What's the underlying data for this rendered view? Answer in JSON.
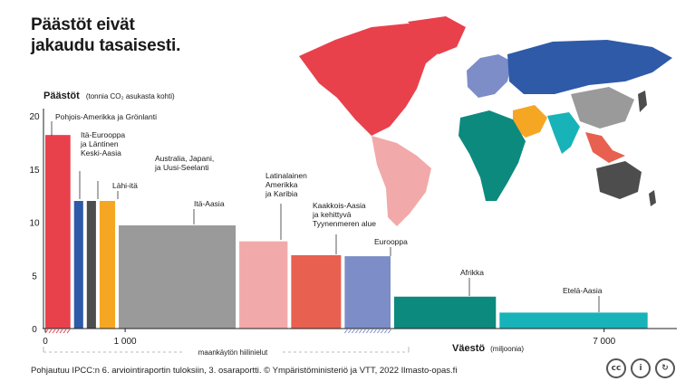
{
  "title_lines": [
    "Päästöt eivät",
    "jakaudu tasaisesti."
  ],
  "footer_text": "Pohjautuu IPCC:n 6. arviointiraportin tuloksiin, 3. osaraportti. © Ympäristöministeriö ja VTT, 2022 Ilmasto-opas.fi",
  "icons": [
    "cc-icon",
    "attribution-icon",
    "share-alike-icon"
  ],
  "icon_glyphs": [
    "cc",
    "i",
    "↻"
  ],
  "chart_data": {
    "type": "bar",
    "variable_width": true,
    "ylabel": "Päästöt",
    "ylabel_unit": "(tonnia CO₂ asukasta kohti)",
    "xlabel": "Väestö",
    "xlabel_unit": "(miljoonia)",
    "ylim": [
      0,
      20
    ],
    "yticks": [
      0,
      5,
      10,
      15,
      20
    ],
    "xlim": [
      0,
      7900
    ],
    "xtick_labels": [
      {
        "value": 0,
        "label": "0"
      },
      {
        "value": 1000,
        "label": "1 000"
      },
      {
        "value": 7000,
        "label": "7 000"
      }
    ],
    "land_use_note": "maankäytön hiilinielut",
    "series": [
      {
        "region": "Pohjois-Amerikka ja Grönlanti",
        "label_lines": [
          "Pohjois-Amerikka ja Grönlanti"
        ],
        "population": 360,
        "emissions": 18.2,
        "color": "#e8414c"
      },
      {
        "region": "Itä-Eurooppa ja Läntinen Keski-Aasia",
        "label_lines": [
          "Itä-Eurooppa",
          "ja Läntinen",
          "Keski-Aasia"
        ],
        "population": 160,
        "emissions": 12.0,
        "color": "#2e5aa8"
      },
      {
        "region": "Australia, Japani, ja Uusi-Seelanti",
        "label_lines": [
          "Australia, Japani,",
          "ja Uusi-Seelanti"
        ],
        "population": 160,
        "emissions": 12.0,
        "color": "#4d4d4d"
      },
      {
        "region": "Lähi-itä",
        "label_lines": [
          "Lähi-itä"
        ],
        "population": 240,
        "emissions": 12.0,
        "color": "#f5a623"
      },
      {
        "region": "Itä-Aasia",
        "label_lines": [
          "Itä-Aasia"
        ],
        "population": 1510,
        "emissions": 9.7,
        "color": "#9a9a9a"
      },
      {
        "region": "Latinalainen Amerikka ja Karibia",
        "label_lines": [
          "Latinalainen",
          "Amerikka",
          "ja Karibia"
        ],
        "population": 650,
        "emissions": 8.2,
        "color": "#f2a9a9"
      },
      {
        "region": "Kaakkois-Aasia ja kehittyvä Tyynenmeren alue",
        "label_lines": [
          "Kaakkois-Aasia",
          "ja kehittyvä",
          "Tyynenmeren alue"
        ],
        "population": 670,
        "emissions": 6.9,
        "color": "#e8604f"
      },
      {
        "region": "Eurooppa",
        "label_lines": [
          "Eurooppa"
        ],
        "population": 620,
        "emissions": 6.8,
        "color": "#7c8dc8"
      },
      {
        "region": "Afrikka",
        "label_lines": [
          "Afrikka"
        ],
        "population": 1320,
        "emissions": 3.0,
        "color": "#0c8a7e"
      },
      {
        "region": "Etelä-Aasia",
        "label_lines": [
          "Etelä-Aasia"
        ],
        "population": 1900,
        "emissions": 1.5,
        "color": "#17b3b8"
      }
    ]
  }
}
